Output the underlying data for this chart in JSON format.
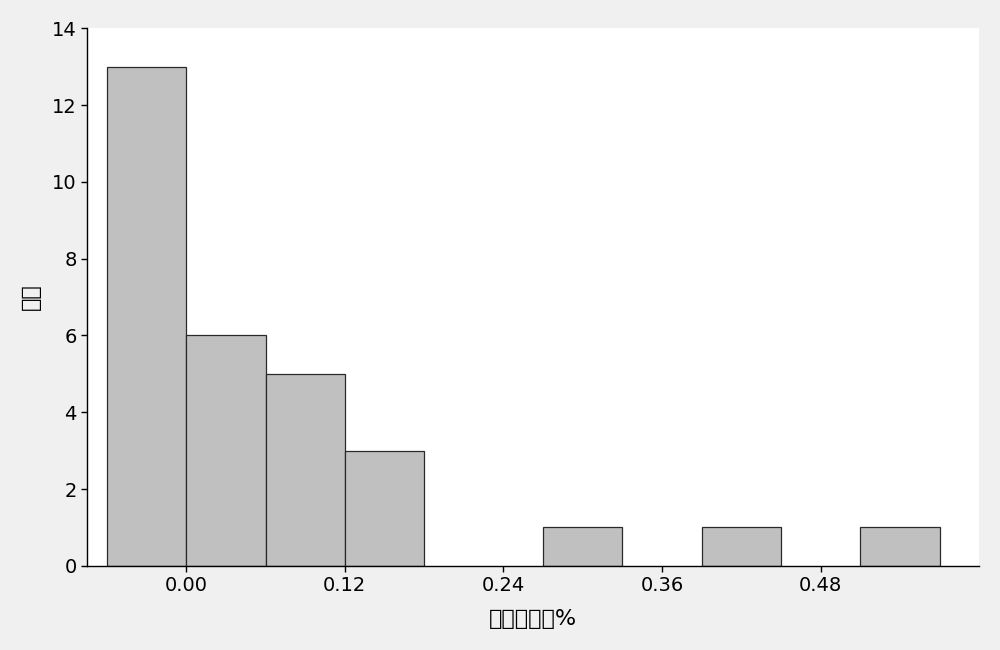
{
  "bar_lefts": [
    -0.06,
    0.0,
    0.06,
    0.12,
    0.27,
    0.39,
    0.51
  ],
  "bar_heights": [
    13,
    6,
    5,
    3,
    1,
    1,
    1
  ],
  "bar_width": 0.06,
  "bar_color": "#C0C0C0",
  "bar_edgecolor": "#2a2a2a",
  "bar_linewidth": 0.9,
  "ylabel": "频率",
  "xlabel": "重量百分比%",
  "ylim": [
    0,
    14
  ],
  "yticks": [
    0,
    2,
    4,
    6,
    8,
    10,
    12,
    14
  ],
  "xticks": [
    0.0,
    0.12,
    0.24,
    0.36,
    0.48
  ],
  "xlim": [
    -0.075,
    0.6
  ],
  "background_color": "#f0f0f0",
  "axes_background": "#ffffff",
  "ylabel_fontsize": 16,
  "xlabel_fontsize": 16,
  "tick_fontsize": 14
}
